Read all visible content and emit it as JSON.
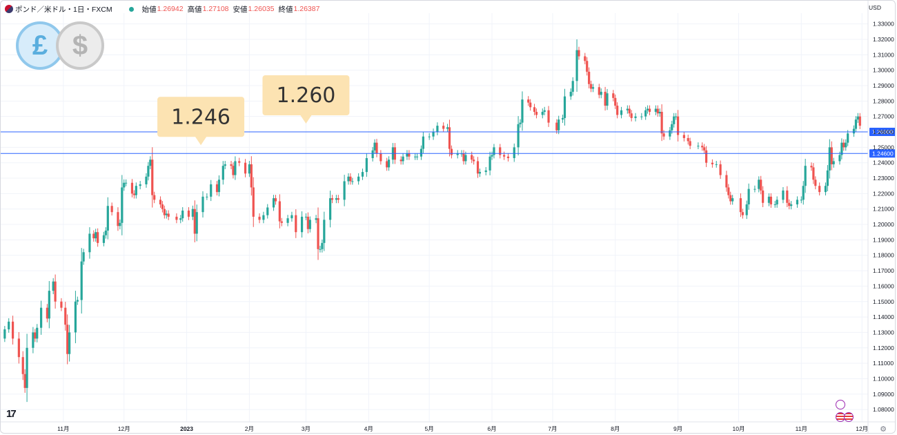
{
  "header": {
    "symbol": "ポンド／米ドル・1日・FXCM",
    "open_label": "始値",
    "open_value": "1.26942",
    "high_label": "高値",
    "high_value": "1.27108",
    "low_label": "安値",
    "low_value": "1.26035",
    "close_label": "終値",
    "close_value": "1.26387"
  },
  "axis_currency": "USD",
  "brand": "17",
  "colors": {
    "up": "#26a69a",
    "down": "#ef5350",
    "line": "#2962ff",
    "callout": "#fce3b2",
    "grid": "#f0f3fa"
  },
  "chart_data": {
    "type": "candlestick",
    "ylim": [
      1.072,
      1.337
    ],
    "y_ticks": [
      "1.08000",
      "1.09000",
      "1.10000",
      "1.11000",
      "1.12000",
      "1.13000",
      "1.14000",
      "1.15000",
      "1.16000",
      "1.17000",
      "1.18000",
      "1.19000",
      "1.20000",
      "1.21000",
      "1.22000",
      "1.23000",
      "1.24000",
      "1.25000",
      "1.26000",
      "1.27000",
      "1.28000",
      "1.29000",
      "1.30000",
      "1.31000",
      "1.32000",
      "1.33000"
    ],
    "x_ticks": [
      {
        "label": "11月",
        "date": "2022-11-01"
      },
      {
        "label": "12月",
        "date": "2022-12-01"
      },
      {
        "label": "2023",
        "date": "2023-01-01"
      },
      {
        "label": "2月",
        "date": "2023-02-01"
      },
      {
        "label": "3月",
        "date": "2023-03-01"
      },
      {
        "label": "4月",
        "date": "2023-04-01"
      },
      {
        "label": "5月",
        "date": "2023-05-01"
      },
      {
        "label": "6月",
        "date": "2023-06-01"
      },
      {
        "label": "7月",
        "date": "2023-07-01"
      },
      {
        "label": "8月",
        "date": "2023-08-01"
      },
      {
        "label": "9月",
        "date": "2023-09-01"
      },
      {
        "label": "10月",
        "date": "2023-10-01"
      },
      {
        "label": "11月",
        "date": "2023-11-01"
      },
      {
        "label": "12月",
        "date": "2023-12-01"
      }
    ],
    "horizontal_lines": [
      {
        "value": 1.26,
        "label": "1.26000"
      },
      {
        "value": 1.246,
        "label": "1.24600"
      }
    ],
    "callouts": [
      {
        "text": "1.246",
        "date": "2023-01-08",
        "value": 1.246
      },
      {
        "text": "1.260",
        "date": "2023-03-01",
        "value": 1.26
      }
    ],
    "closes": [
      [
        "2022-10-03",
        1.132
      ],
      [
        "2022-10-05",
        1.137
      ],
      [
        "2022-10-07",
        1.126
      ],
      [
        "2022-10-10",
        1.114
      ],
      [
        "2022-10-12",
        1.103
      ],
      [
        "2022-10-13",
        1.094
      ],
      [
        "2022-10-14",
        1.12
      ],
      [
        "2022-10-17",
        1.13
      ],
      [
        "2022-10-18",
        1.126
      ],
      [
        "2022-10-19",
        1.133
      ],
      [
        "2022-10-21",
        1.146
      ],
      [
        "2022-10-24",
        1.139
      ],
      [
        "2022-10-25",
        1.157
      ],
      [
        "2022-10-27",
        1.163
      ],
      [
        "2022-10-28",
        1.15
      ],
      [
        "2022-10-31",
        1.146
      ],
      [
        "2022-11-02",
        1.135
      ],
      [
        "2022-11-03",
        1.116
      ],
      [
        "2022-11-04",
        1.13
      ],
      [
        "2022-11-07",
        1.15
      ],
      [
        "2022-11-08",
        1.151
      ],
      [
        "2022-11-10",
        1.176
      ],
      [
        "2022-11-11",
        1.182
      ],
      [
        "2022-11-14",
        1.194
      ],
      [
        "2022-11-16",
        1.191
      ],
      [
        "2022-11-17",
        1.195
      ],
      [
        "2022-11-18",
        1.188
      ],
      [
        "2022-11-21",
        1.193
      ],
      [
        "2022-11-22",
        1.196
      ],
      [
        "2022-11-23",
        1.212
      ],
      [
        "2022-11-25",
        1.208
      ],
      [
        "2022-11-28",
        1.199
      ],
      [
        "2022-11-29",
        1.201
      ],
      [
        "2022-11-30",
        1.224
      ],
      [
        "2022-12-01",
        1.227
      ],
      [
        "2022-12-02",
        1.227
      ],
      [
        "2022-12-05",
        1.22
      ],
      [
        "2022-12-06",
        1.219
      ],
      [
        "2022-12-07",
        1.225
      ],
      [
        "2022-12-09",
        1.226
      ],
      [
        "2022-12-12",
        1.231
      ],
      [
        "2022-12-13",
        1.238
      ],
      [
        "2022-12-14",
        1.242
      ],
      [
        "2022-12-15",
        1.219
      ],
      [
        "2022-12-16",
        1.216
      ],
      [
        "2022-12-19",
        1.213
      ],
      [
        "2022-12-20",
        1.21
      ],
      [
        "2022-12-21",
        1.206
      ],
      [
        "2022-12-22",
        1.207
      ],
      [
        "2022-12-23",
        1.205
      ],
      [
        "2022-12-27",
        1.203
      ],
      [
        "2022-12-29",
        1.204
      ],
      [
        "2022-12-30",
        1.209
      ],
      [
        "2023-01-02",
        1.205
      ],
      [
        "2023-01-04",
        1.21
      ],
      [
        "2023-01-05",
        1.194
      ],
      [
        "2023-01-06",
        1.208
      ],
      [
        "2023-01-09",
        1.218
      ],
      [
        "2023-01-11",
        1.218
      ],
      [
        "2023-01-13",
        1.226
      ],
      [
        "2023-01-16",
        1.221
      ],
      [
        "2023-01-17",
        1.229
      ],
      [
        "2023-01-19",
        1.238
      ],
      [
        "2023-01-20",
        1.239
      ],
      [
        "2023-01-23",
        1.238
      ],
      [
        "2023-01-24",
        1.232
      ],
      [
        "2023-01-25",
        1.241
      ],
      [
        "2023-01-27",
        1.24
      ],
      [
        "2023-01-30",
        1.233
      ],
      [
        "2023-02-01",
        1.239
      ],
      [
        "2023-02-02",
        1.224
      ],
      [
        "2023-02-03",
        1.205
      ],
      [
        "2023-02-06",
        1.203
      ],
      [
        "2023-02-08",
        1.206
      ],
      [
        "2023-02-10",
        1.211
      ],
      [
        "2023-02-13",
        1.217
      ],
      [
        "2023-02-14",
        1.215
      ],
      [
        "2023-02-16",
        1.202
      ],
      [
        "2023-02-17",
        1.201
      ],
      [
        "2023-02-20",
        1.204
      ],
      [
        "2023-02-22",
        1.206
      ],
      [
        "2023-02-24",
        1.195
      ],
      [
        "2023-02-27",
        1.205
      ],
      [
        "2023-03-01",
        1.205
      ],
      [
        "2023-03-02",
        1.197
      ],
      [
        "2023-03-03",
        1.203
      ],
      [
        "2023-03-06",
        1.204
      ],
      [
        "2023-03-07",
        1.184
      ],
      [
        "2023-03-08",
        1.184
      ],
      [
        "2023-03-09",
        1.188
      ],
      [
        "2023-03-10",
        1.203
      ],
      [
        "2023-03-13",
        1.217
      ],
      [
        "2023-03-14",
        1.216
      ],
      [
        "2023-03-16",
        1.217
      ],
      [
        "2023-03-17",
        1.216
      ],
      [
        "2023-03-20",
        1.228
      ],
      [
        "2023-03-22",
        1.231
      ],
      [
        "2023-03-23",
        1.228
      ],
      [
        "2023-03-24",
        1.228
      ],
      [
        "2023-03-27",
        1.231
      ],
      [
        "2023-03-29",
        1.234
      ],
      [
        "2023-03-31",
        1.243
      ],
      [
        "2023-04-03",
        1.248
      ],
      [
        "2023-04-04",
        1.253
      ],
      [
        "2023-04-05",
        1.246
      ],
      [
        "2023-04-07",
        1.241
      ],
      [
        "2023-04-10",
        1.237
      ],
      [
        "2023-04-11",
        1.242
      ],
      [
        "2023-04-13",
        1.25
      ],
      [
        "2023-04-14",
        1.242
      ],
      [
        "2023-04-17",
        1.241
      ],
      [
        "2023-04-18",
        1.244
      ],
      [
        "2023-04-20",
        1.246
      ],
      [
        "2023-04-21",
        1.244
      ],
      [
        "2023-04-24",
        1.244
      ],
      [
        "2023-04-25",
        1.244
      ],
      [
        "2023-04-27",
        1.249
      ],
      [
        "2023-04-28",
        1.257
      ],
      [
        "2023-05-01",
        1.257
      ],
      [
        "2023-05-03",
        1.26
      ],
      [
        "2023-05-05",
        1.264
      ],
      [
        "2023-05-08",
        1.262
      ],
      [
        "2023-05-10",
        1.263
      ],
      [
        "2023-05-11",
        1.249
      ],
      [
        "2023-05-12",
        1.245
      ],
      [
        "2023-05-15",
        1.246
      ],
      [
        "2023-05-17",
        1.246
      ],
      [
        "2023-05-18",
        1.241
      ],
      [
        "2023-05-19",
        1.245
      ],
      [
        "2023-05-22",
        1.242
      ],
      [
        "2023-05-23",
        1.241
      ],
      [
        "2023-05-25",
        1.233
      ],
      [
        "2023-05-26",
        1.234
      ],
      [
        "2023-05-29",
        1.235
      ],
      [
        "2023-05-31",
        1.244
      ],
      [
        "2023-06-01",
        1.245
      ],
      [
        "2023-06-02",
        1.25
      ],
      [
        "2023-06-05",
        1.245
      ],
      [
        "2023-06-07",
        1.244
      ],
      [
        "2023-06-09",
        1.243
      ],
      [
        "2023-06-12",
        1.25
      ],
      [
        "2023-06-14",
        1.265
      ],
      [
        "2023-06-15",
        1.266
      ],
      [
        "2023-06-16",
        1.281
      ],
      [
        "2023-06-19",
        1.279
      ],
      [
        "2023-06-20",
        1.276
      ],
      [
        "2023-06-22",
        1.273
      ],
      [
        "2023-06-23",
        1.271
      ],
      [
        "2023-06-26",
        1.273
      ],
      [
        "2023-06-27",
        1.274
      ],
      [
        "2023-06-29",
        1.266
      ],
      [
        "2023-07-03",
        1.261
      ],
      [
        "2023-07-04",
        1.268
      ],
      [
        "2023-07-06",
        1.269
      ],
      [
        "2023-07-07",
        1.283
      ],
      [
        "2023-07-10",
        1.286
      ],
      [
        "2023-07-11",
        1.293
      ],
      [
        "2023-07-13",
        1.313
      ],
      [
        "2023-07-14",
        1.309
      ],
      [
        "2023-07-17",
        1.306
      ],
      [
        "2023-07-18",
        1.299
      ],
      [
        "2023-07-19",
        1.291
      ],
      [
        "2023-07-20",
        1.288
      ],
      [
        "2023-07-21",
        1.289
      ],
      [
        "2023-07-24",
        1.284
      ],
      [
        "2023-07-25",
        1.286
      ],
      [
        "2023-07-27",
        1.277
      ],
      [
        "2023-07-28",
        1.285
      ],
      [
        "2023-07-31",
        1.282
      ],
      [
        "2023-08-01",
        1.277
      ],
      [
        "2023-08-02",
        1.271
      ],
      [
        "2023-08-04",
        1.274
      ],
      [
        "2023-08-07",
        1.275
      ],
      [
        "2023-08-08",
        1.272
      ],
      [
        "2023-08-09",
        1.269
      ],
      [
        "2023-08-11",
        1.27
      ],
      [
        "2023-08-14",
        1.27
      ],
      [
        "2023-08-16",
        1.274
      ],
      [
        "2023-08-17",
        1.275
      ],
      [
        "2023-08-18",
        1.273
      ],
      [
        "2023-08-21",
        1.275
      ],
      [
        "2023-08-22",
        1.272
      ],
      [
        "2023-08-23",
        1.273
      ],
      [
        "2023-08-24",
        1.259
      ],
      [
        "2023-08-25",
        1.257
      ],
      [
        "2023-08-28",
        1.261
      ],
      [
        "2023-08-29",
        1.265
      ],
      [
        "2023-08-30",
        1.27
      ],
      [
        "2023-08-31",
        1.27
      ],
      [
        "2023-09-01",
        1.258
      ],
      [
        "2023-09-04",
        1.256
      ],
      [
        "2023-09-06",
        1.254
      ],
      [
        "2023-09-07",
        1.251
      ],
      [
        "2023-09-11",
        1.251
      ],
      [
        "2023-09-13",
        1.25
      ],
      [
        "2023-09-14",
        1.248
      ],
      [
        "2023-09-15",
        1.24
      ],
      [
        "2023-09-18",
        1.239
      ],
      [
        "2023-09-20",
        1.239
      ],
      [
        "2023-09-22",
        1.232
      ],
      [
        "2023-09-25",
        1.224
      ],
      [
        "2023-09-26",
        1.219
      ],
      [
        "2023-09-27",
        1.215
      ],
      [
        "2023-09-28",
        1.217
      ],
      [
        "2023-10-02",
        1.208
      ],
      [
        "2023-10-03",
        1.206
      ],
      [
        "2023-10-05",
        1.213
      ],
      [
        "2023-10-06",
        1.223
      ],
      [
        "2023-10-09",
        1.223
      ],
      [
        "2023-10-11",
        1.229
      ],
      [
        "2023-10-12",
        1.222
      ],
      [
        "2023-10-13",
        1.214
      ],
      [
        "2023-10-16",
        1.218
      ],
      [
        "2023-10-17",
        1.213
      ],
      [
        "2023-10-19",
        1.213
      ],
      [
        "2023-10-20",
        1.216
      ],
      [
        "2023-10-23",
        1.222
      ],
      [
        "2023-10-25",
        1.214
      ],
      [
        "2023-10-26",
        1.212
      ],
      [
        "2023-10-27",
        1.213
      ],
      [
        "2023-10-30",
        1.216
      ],
      [
        "2023-11-01",
        1.216
      ],
      [
        "2023-11-02",
        1.225
      ],
      [
        "2023-11-03",
        1.238
      ],
      [
        "2023-11-06",
        1.237
      ],
      [
        "2023-11-07",
        1.229
      ],
      [
        "2023-11-08",
        1.225
      ],
      [
        "2023-11-10",
        1.221
      ],
      [
        "2023-11-13",
        1.225
      ],
      [
        "2023-11-14",
        1.235
      ],
      [
        "2023-11-15",
        1.25
      ],
      [
        "2023-11-16",
        1.239
      ],
      [
        "2023-11-17",
        1.241
      ],
      [
        "2023-11-20",
        1.245
      ],
      [
        "2023-11-21",
        1.253
      ],
      [
        "2023-11-22",
        1.25
      ],
      [
        "2023-11-23",
        1.253
      ],
      [
        "2023-11-24",
        1.259
      ],
      [
        "2023-11-27",
        1.262
      ],
      [
        "2023-11-28",
        1.268
      ],
      [
        "2023-11-29",
        1.27
      ],
      [
        "2023-11-30",
        1.264
      ]
    ]
  }
}
